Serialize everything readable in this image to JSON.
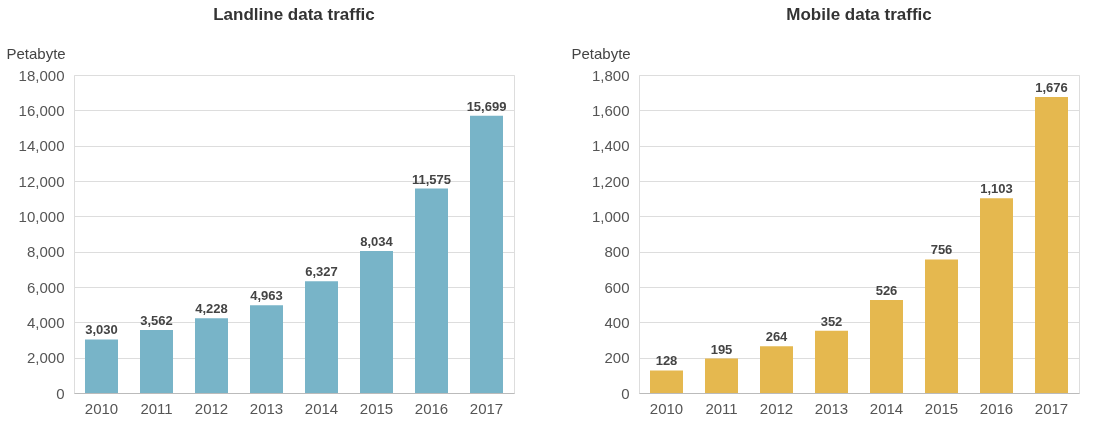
{
  "chart_data": [
    {
      "type": "bar",
      "title": "Landline data traffic",
      "ylabel": "Petabyte",
      "categories": [
        "2010",
        "2011",
        "2012",
        "2013",
        "2014",
        "2015",
        "2016",
        "2017"
      ],
      "values": [
        3030,
        3562,
        4228,
        4963,
        6327,
        8034,
        11575,
        15699
      ],
      "value_labels": [
        "3,030",
        "3,562",
        "4,228",
        "4,963",
        "6,327",
        "8,034",
        "11,575",
        "15,699"
      ],
      "color": "#78b4c8",
      "ylim": [
        0,
        18000
      ],
      "yticks": [
        0,
        {
          "value": 2000,
          "label": "2,000"
        },
        {
          "value": 4000,
          "label": "4,000"
        },
        {
          "value": 6000,
          "label": "6,000"
        },
        {
          "value": 8000,
          "label": "8,000"
        },
        {
          "value": 10000,
          "label": "10,000"
        },
        {
          "value": 12000,
          "label": "12,000"
        },
        {
          "value": 14000,
          "label": "14,000"
        },
        {
          "value": 16000,
          "label": "16,000"
        },
        {
          "value": 18000,
          "label": "18,000"
        }
      ],
      "grid": "y"
    },
    {
      "type": "bar",
      "title": "Mobile data traffic",
      "ylabel": "Petabyte",
      "categories": [
        "2010",
        "2011",
        "2012",
        "2013",
        "2014",
        "2015",
        "2016",
        "2017"
      ],
      "values": [
        128,
        195,
        264,
        352,
        526,
        756,
        1103,
        1676
      ],
      "value_labels": [
        "128",
        "195",
        "264",
        "352",
        "526",
        "756",
        "1,103",
        "1,676"
      ],
      "color": "#e5b84f",
      "ylim": [
        0,
        1800
      ],
      "yticks": [
        0,
        200,
        400,
        600,
        800,
        {
          "value": 1000,
          "label": "1,000"
        },
        {
          "value": 1200,
          "label": "1,200"
        },
        {
          "value": 1400,
          "label": "1,400"
        },
        {
          "value": 1600,
          "label": "1,600"
        },
        {
          "value": 1800,
          "label": "1,800"
        }
      ],
      "grid": "y"
    }
  ]
}
